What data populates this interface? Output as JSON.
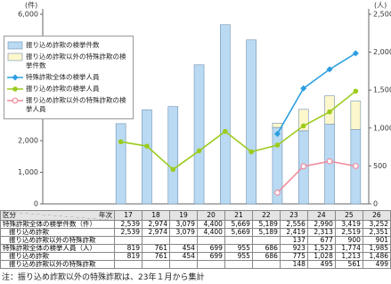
{
  "chart_data": {
    "type": "bar",
    "stacked": true,
    "y_unit": "(件)",
    "y2_unit": "(人)",
    "categories": [
      "17",
      "18",
      "19",
      "20",
      "21",
      "22",
      "23",
      "24",
      "25",
      "26"
    ],
    "series": [
      {
        "name": "振り込め詐欺の検挙件数",
        "type": "bar",
        "color": "#b9daf2",
        "values": [
          2539,
          2974,
          3079,
          4400,
          5669,
          5189,
          2419,
          2313,
          2519,
          2351
        ]
      },
      {
        "name": "振り込め詐欺以外の特殊詐欺の検挙件数",
        "type": "bar",
        "color": "#fdf7cc",
        "values": [
          null,
          null,
          null,
          null,
          null,
          null,
          137,
          677,
          900,
          901
        ]
      },
      {
        "name": "特殊詐欺全体の検挙人員",
        "type": "line",
        "axis": "y2",
        "marker": "diamond",
        "color": "#2b9fe0",
        "values": [
          null,
          null,
          null,
          null,
          null,
          null,
          923,
          1523,
          1774,
          1985
        ]
      },
      {
        "name": "振り込め詐欺の検挙人員",
        "type": "line",
        "axis": "y2",
        "marker": "circle",
        "color": "#9ccb1e",
        "values": [
          819,
          761,
          454,
          699,
          955,
          686,
          775,
          1028,
          1213,
          1486
        ]
      },
      {
        "name": "振り込め詐欺以外の特殊詐欺の検挙人員",
        "type": "line",
        "axis": "y2",
        "marker": "open-circle",
        "color": "#f08c9c",
        "values": [
          null,
          null,
          null,
          null,
          null,
          null,
          148,
          495,
          561,
          499
        ]
      }
    ],
    "ylim": [
      0,
      6000
    ],
    "yticks": [
      0,
      {
        "value": 1000,
        "label": "1,000"
      },
      {
        "value": 2000,
        "label": "2,000"
      },
      {
        "value": 3000,
        "label": "3,000"
      },
      {
        "value": 4000,
        "label": "4,000"
      },
      {
        "value": 5000,
        "label": "5,000"
      },
      {
        "value": 6000,
        "label": "6,000"
      }
    ],
    "y2lim": [
      0,
      2500
    ],
    "y2ticks": [
      0,
      500,
      {
        "value": 1000,
        "label": "1,000"
      },
      {
        "value": 1500,
        "label": "1,500"
      },
      {
        "value": 2000,
        "label": "2,000"
      },
      {
        "value": 2500,
        "label": "2,500"
      }
    ],
    "grid": false
  },
  "table": {
    "corner": [
      "区分",
      "年次"
    ],
    "rows": [
      {
        "label": "特殊詐欺全体の検挙件数（件）",
        "indent": false,
        "cells": [
          "2,539",
          "2,974",
          "3,079",
          "4,400",
          "5,669",
          "5,189",
          "2,556",
          "2,990",
          "3,419",
          "3,252"
        ]
      },
      {
        "label": "振り込め詐欺",
        "indent": true,
        "cells": [
          "2,539",
          "2,974",
          "3,079",
          "4,400",
          "5,669",
          "5,189",
          "2,419",
          "2,313",
          "2,519",
          "2,351"
        ]
      },
      {
        "label": "振り込め詐欺以外の特殊詐欺",
        "indent": true,
        "cells": [
          null,
          null,
          null,
          null,
          null,
          null,
          "137",
          "677",
          "900",
          "901"
        ]
      },
      {
        "label": "特殊詐欺全体の検挙人員（人）",
        "indent": false,
        "cells": [
          "819",
          "761",
          "454",
          "699",
          "955",
          "686",
          "923",
          "1,523",
          "1,774",
          "1,985"
        ]
      },
      {
        "label": "振り込め詐欺",
        "indent": true,
        "cells": [
          "819",
          "761",
          "454",
          "699",
          "955",
          "686",
          "775",
          "1,028",
          "1,213",
          "1,486"
        ]
      },
      {
        "label": "振り込め詐欺以外の特殊詐欺",
        "indent": true,
        "cells": [
          null,
          null,
          null,
          null,
          null,
          null,
          "148",
          "495",
          "561",
          "499"
        ]
      }
    ]
  },
  "note": "注：振り込め詐欺以外の特殊詐欺は、23年１月から集計"
}
